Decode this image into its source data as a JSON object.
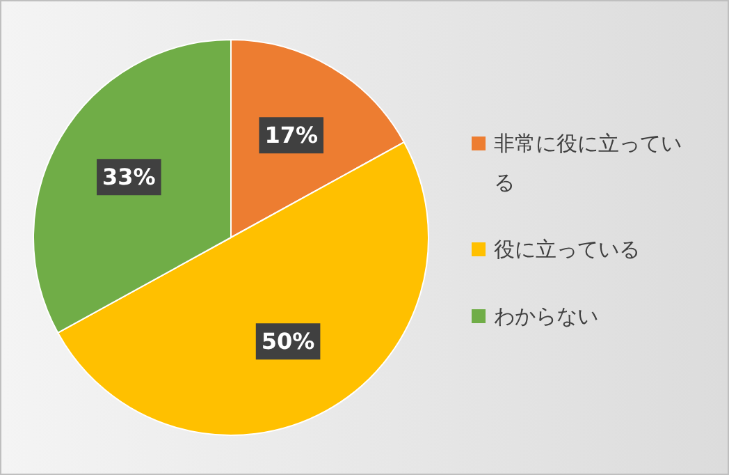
{
  "chart_data": {
    "type": "pie",
    "categories": [
      "非常に役に立っている",
      "役に立っている",
      "わからない"
    ],
    "values": [
      17,
      50,
      33
    ],
    "colors": [
      "#ed7d31",
      "#ffc000",
      "#70ad47"
    ],
    "value_labels": [
      "17%",
      "50%",
      "33%"
    ],
    "legend": "right"
  }
}
